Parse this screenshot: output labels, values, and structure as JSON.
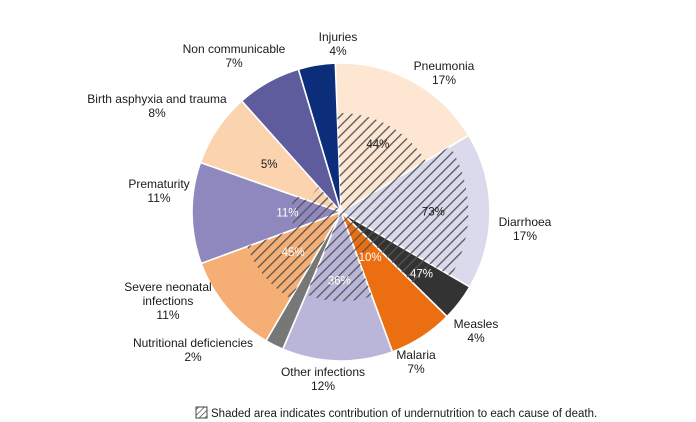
{
  "chart_data": {
    "type": "pie",
    "slices": [
      {
        "name": "Pneumonia",
        "value": 17,
        "label": "17%",
        "color": "#FDE6D2",
        "undernutrition_share": 44,
        "inner_label": "44%",
        "inner_text_color": "#1a1a1a"
      },
      {
        "name": "Diarrhoea",
        "value": 17,
        "label": "17%",
        "color": "#DADAEC",
        "undernutrition_share": 73,
        "inner_label": "73%",
        "inner_text_color": "#1a1a1a"
      },
      {
        "name": "Measles",
        "value": 4,
        "label": "4%",
        "color": "#333333",
        "undernutrition_share": 47,
        "inner_label": "47%",
        "inner_text_color": "#ffffff"
      },
      {
        "name": "Malaria",
        "value": 7,
        "label": "7%",
        "color": "#EB6E10",
        "undernutrition_share": 10,
        "inner_label": "10%",
        "inner_text_color": "#ffffff"
      },
      {
        "name": "Other infections",
        "value": 12,
        "label": "12%",
        "color": "#B9B6D9",
        "undernutrition_share": 36,
        "inner_label": "36%",
        "inner_text_color": "#ffffff"
      },
      {
        "name": "Nutritional deficiencies",
        "value": 2,
        "label": "2%",
        "color": "#777777",
        "undernutrition_share": null,
        "inner_label": "",
        "inner_text_color": "#1a1a1a"
      },
      {
        "name": "Severe neonatal infections",
        "value": 11,
        "label": "11%",
        "color": "#F5AE73",
        "undernutrition_share": 45,
        "inner_label": "45%",
        "inner_text_color": "#ffffff"
      },
      {
        "name": "Prematurity",
        "value": 11,
        "label": "11%",
        "color": "#8E88BE",
        "undernutrition_share": 11,
        "inner_label": "11%",
        "inner_text_color": "#ffffff"
      },
      {
        "name": "Birth asphyxia and trauma",
        "value": 8,
        "label": "8%",
        "color": "#FBD3AE",
        "undernutrition_share": 5,
        "inner_label": "5%",
        "inner_text_color": "#1a1a1a"
      },
      {
        "name": "Non communicable",
        "value": 7,
        "label": "7%",
        "color": "#5F5C9E",
        "undernutrition_share": null,
        "inner_label": "",
        "inner_text_color": "#ffffff"
      },
      {
        "name": "Injuries",
        "value": 4,
        "label": "4%",
        "color": "#0B2D7A",
        "undernutrition_share": null,
        "inner_label": "",
        "inner_text_color": "#ffffff"
      }
    ],
    "outer_labels": [
      {
        "lines": [
          "Pneumonia"
        ]
      },
      {
        "lines": [
          "Diarrhoea"
        ]
      },
      {
        "lines": [
          "Measles"
        ]
      },
      {
        "lines": [
          "Malaria"
        ]
      },
      {
        "lines": [
          "Other infections"
        ]
      },
      {
        "lines": [
          "Nutritional deficiencies"
        ]
      },
      {
        "lines": [
          "Severe neonatal",
          "infections"
        ]
      },
      {
        "lines": [
          "Prematurity"
        ]
      },
      {
        "lines": [
          "Birth asphyxia and trauma"
        ]
      },
      {
        "lines": [
          "Non communicable"
        ]
      },
      {
        "lines": [
          "Injuries"
        ]
      }
    ],
    "legend": "Shaded area indicates contribution of undernutrition to each cause of death.",
    "start": "top",
    "direction": "clockwise",
    "hatch_color": "#555555"
  }
}
